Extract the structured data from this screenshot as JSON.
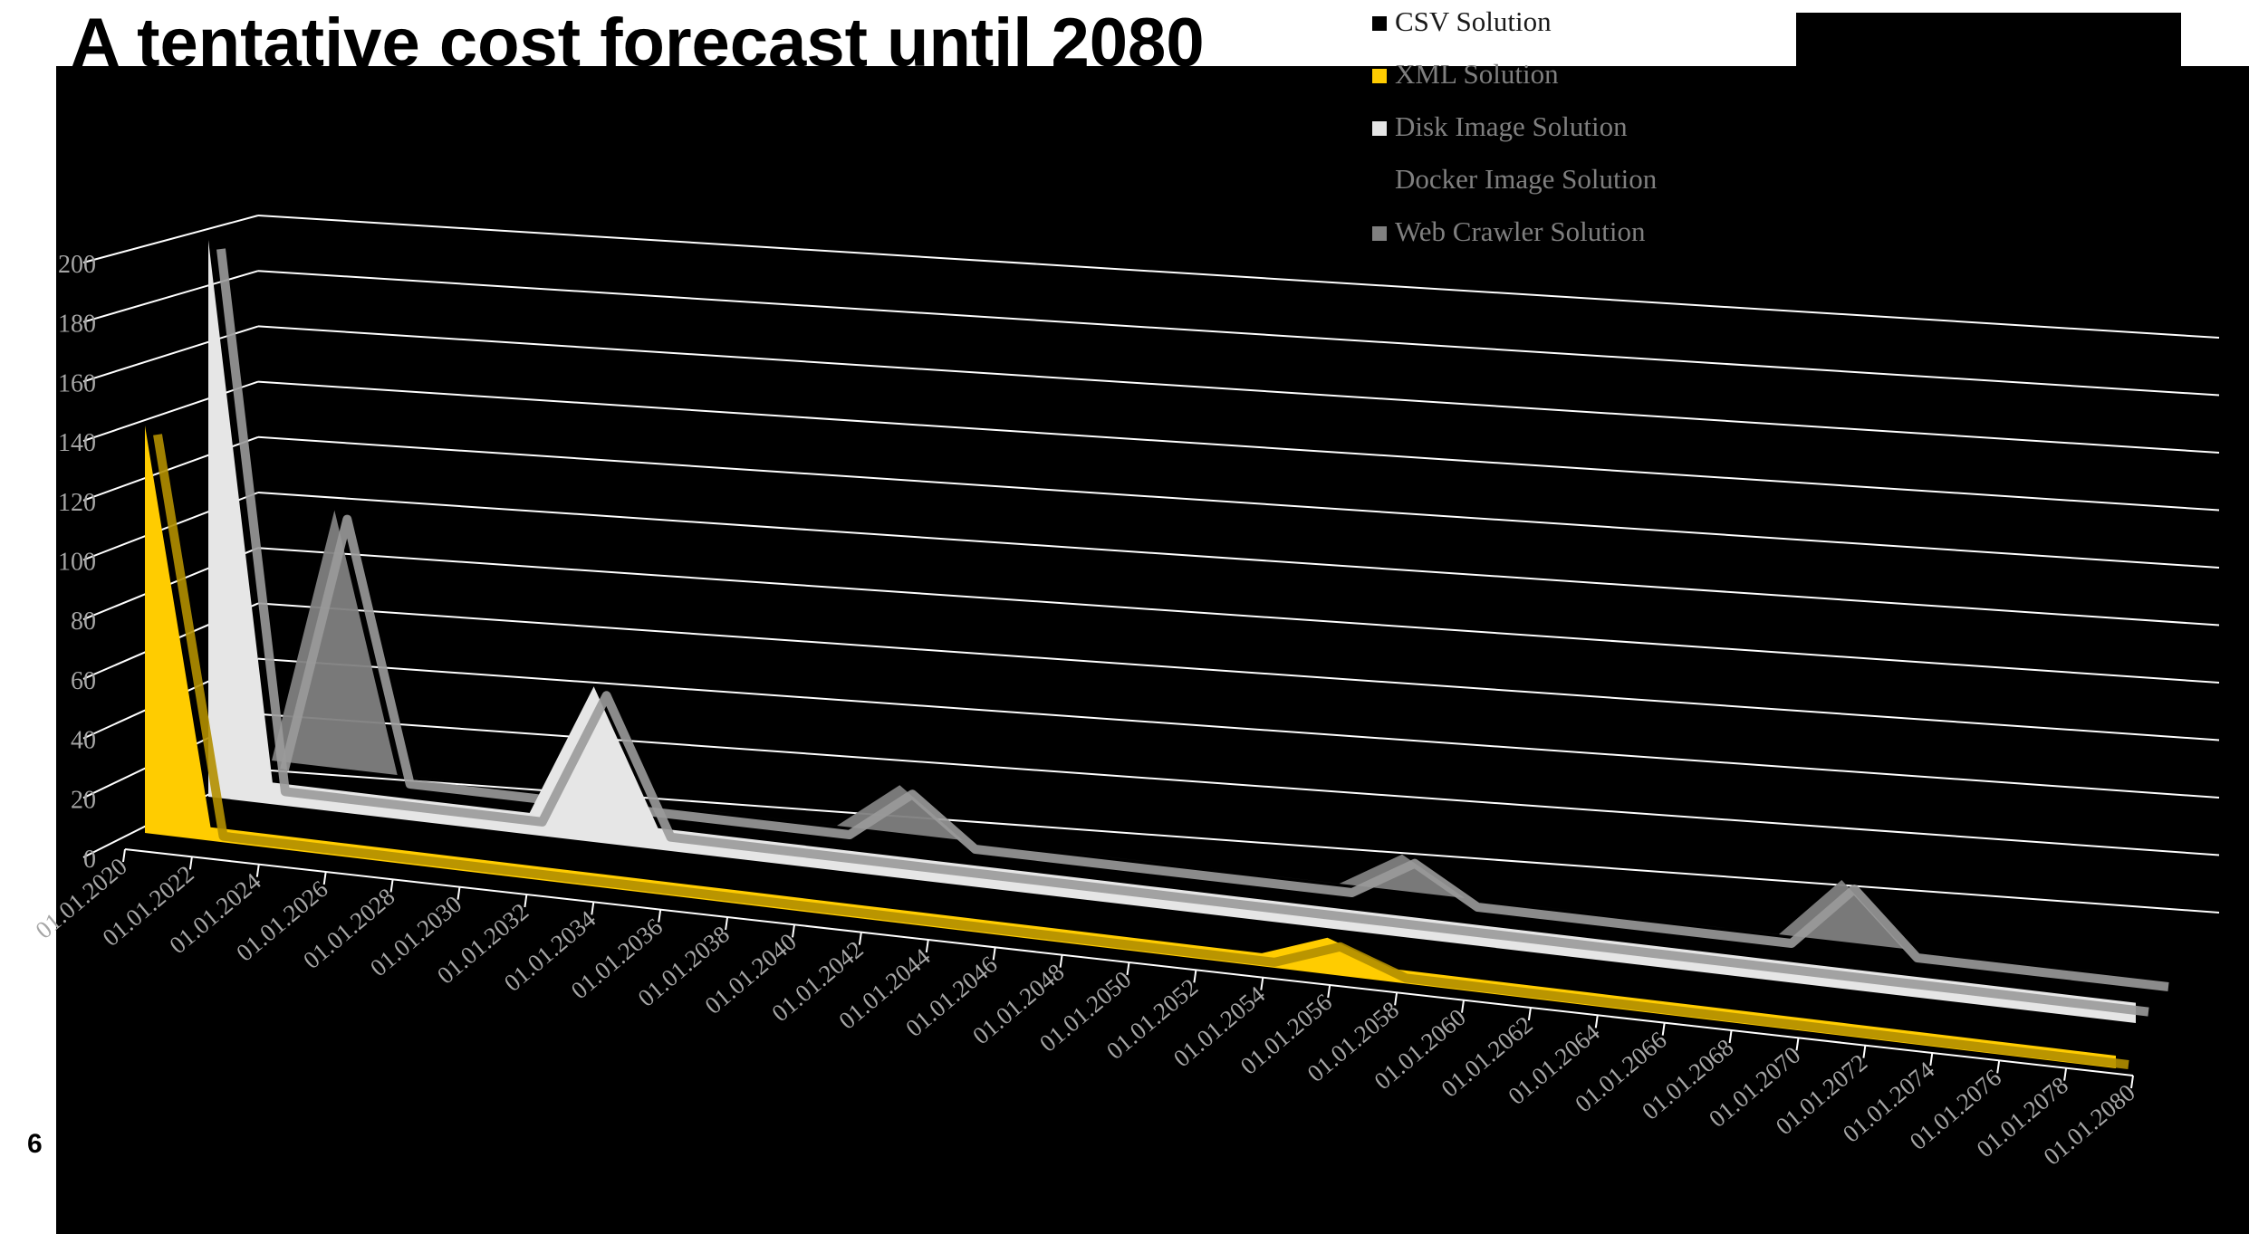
{
  "slide": {
    "title": "A tentative cost forecast until 2080",
    "page_number": "6"
  },
  "colors": {
    "background": "#000000",
    "gridline": "#ffffff",
    "axis_text": "#a6a6a6",
    "legend_text": "#7f7f7f"
  },
  "chart_data": {
    "type": "area",
    "style": "3d-area",
    "title": "",
    "xlabel": "",
    "ylabel": "",
    "ylim": [
      0,
      200
    ],
    "yticks": [
      "0",
      "20",
      "40",
      "60",
      "80",
      "100",
      "120",
      "140",
      "160",
      "180",
      "200"
    ],
    "grid": true,
    "legend_position": "top-right",
    "categories": [
      "01.01.2020",
      "01.01.2022",
      "01.01.2024",
      "01.01.2026",
      "01.01.2028",
      "01.01.2030",
      "01.01.2032",
      "01.01.2034",
      "01.01.2036",
      "01.01.2038",
      "01.01.2040",
      "01.01.2042",
      "01.01.2044",
      "01.01.2046",
      "01.01.2048",
      "01.01.2050",
      "01.01.2052",
      "01.01.2054",
      "01.01.2056",
      "01.01.2058",
      "01.01.2060",
      "01.01.2062",
      "01.01.2064",
      "01.01.2066",
      "01.01.2068",
      "01.01.2070",
      "01.01.2072",
      "01.01.2074",
      "01.01.2076",
      "01.01.2078",
      "01.01.2080"
    ],
    "series": [
      {
        "name": "CSV Solution",
        "color": "#000000",
        "values": [
          0,
          0,
          0,
          0,
          0,
          0,
          0,
          0,
          0,
          0,
          0,
          0,
          0,
          0,
          0,
          0,
          0,
          0,
          0,
          0,
          0,
          0,
          0,
          0,
          0,
          0,
          0,
          0,
          0,
          0,
          0
        ]
      },
      {
        "name": "XML Solution",
        "color": "#ffcc00",
        "values": [
          150,
          5,
          5,
          5,
          5,
          5,
          5,
          5,
          5,
          5,
          5,
          5,
          5,
          5,
          5,
          5,
          5,
          5,
          14,
          5,
          5,
          5,
          5,
          5,
          5,
          5,
          5,
          5,
          5,
          5,
          5
        ]
      },
      {
        "name": "Disk Image Solution",
        "color": "#e6e6e6",
        "values": [
          205,
          8,
          8,
          8,
          8,
          8,
          58,
          8,
          8,
          8,
          8,
          8,
          8,
          8,
          8,
          8,
          8,
          8,
          8,
          8,
          8,
          8,
          8,
          8,
          8,
          8,
          8,
          8,
          8,
          8,
          8
        ]
      },
      {
        "name": "Docker Image Solution",
        "color": "#000000",
        "values": [
          0,
          0,
          0,
          0,
          0,
          0,
          0,
          0,
          0,
          0,
          0,
          0,
          0,
          0,
          0,
          0,
          0,
          0,
          0,
          0,
          0,
          0,
          0,
          0,
          0,
          0,
          0,
          0,
          0,
          0,
          0
        ]
      },
      {
        "name": "Web Crawler Solution",
        "color": "#808080",
        "values": [
          0,
          95,
          0,
          0,
          0,
          0,
          0,
          0,
          0,
          0,
          18,
          0,
          0,
          0,
          0,
          0,
          0,
          0,
          14,
          0,
          0,
          0,
          0,
          0,
          0,
          24,
          0,
          0,
          0,
          0,
          0
        ]
      }
    ]
  }
}
